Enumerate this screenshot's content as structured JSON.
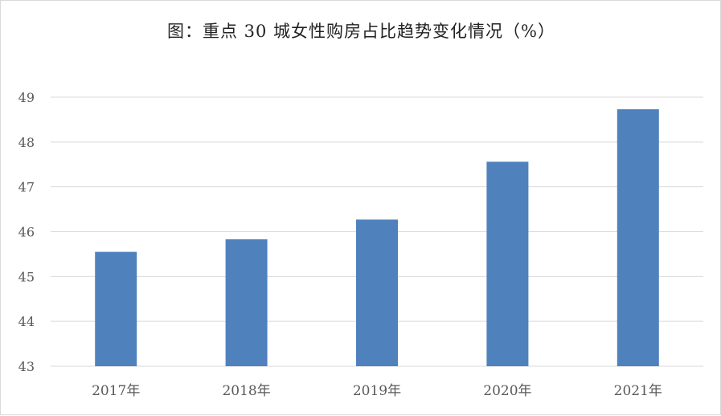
{
  "chart_data": {
    "type": "bar",
    "title": "图：重点 30 城女性购房占比趋势变化情况（%）",
    "xlabel": "",
    "ylabel": "",
    "categories": [
      "2017年",
      "2018年",
      "2019年",
      "2020年",
      "2021年"
    ],
    "values": [
      45.55,
      45.83,
      46.27,
      47.56,
      48.73
    ],
    "ylim": [
      43,
      49
    ],
    "yticks": [
      "43",
      "44",
      "45",
      "46",
      "47",
      "48",
      "49"
    ],
    "grid": true,
    "bar_color": "#4f81bd",
    "grid_color": "#d9d9d9"
  }
}
